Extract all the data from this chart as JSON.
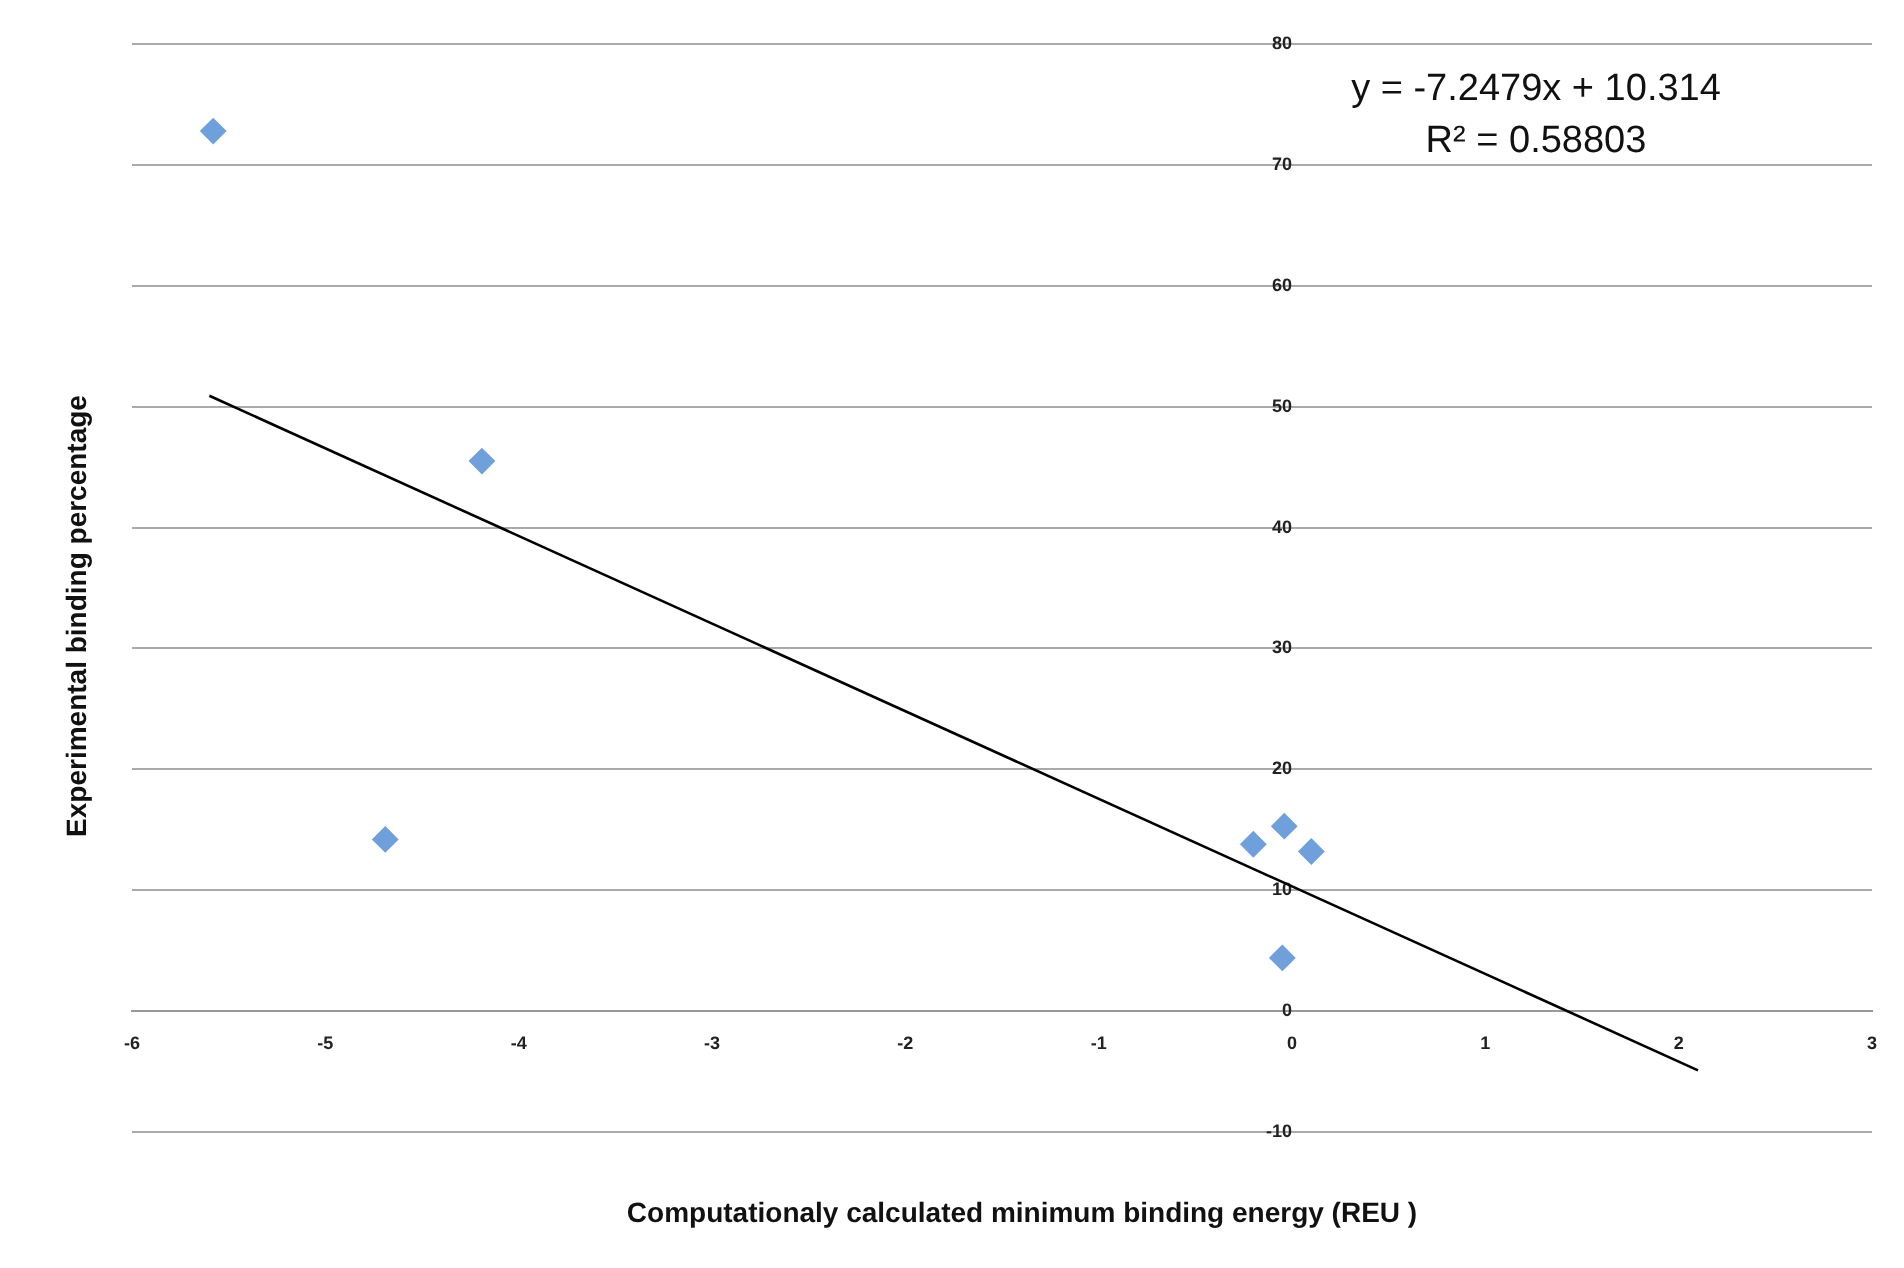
{
  "chart_data": {
    "type": "scatter",
    "xlabel": "Computationaly calculated minimum binding energy (REU )",
    "ylabel": "Experimental binding percentage",
    "xlim": [
      -6,
      3
    ],
    "xticks": [
      -6,
      -5,
      -4,
      -3,
      -2,
      -1,
      0,
      1,
      2,
      3
    ],
    "ylim": [
      -10,
      80
    ],
    "yticks": [
      -10,
      0,
      10,
      20,
      30,
      40,
      50,
      60,
      70,
      80
    ],
    "grid": "y",
    "legend": false,
    "annotations": [
      "y = -7.2479x + 10.314",
      "R² = 0.58803"
    ],
    "series": [
      {
        "color": "#6fa0dc",
        "marker": "diamond",
        "x": [
          -5.58,
          -4.19,
          -4.69,
          -0.2,
          -0.04,
          0.1,
          -0.05
        ],
        "values": [
          72.8,
          45.5,
          14.2,
          13.8,
          15.3,
          13.2,
          4.4
        ]
      },
      {
        "type": "line",
        "color": "#000000",
        "marker": "none",
        "line_style": "solid",
        "x": [
          -5.6,
          2.1
        ],
        "values": [
          50.9,
          -4.9
        ]
      }
    ]
  }
}
